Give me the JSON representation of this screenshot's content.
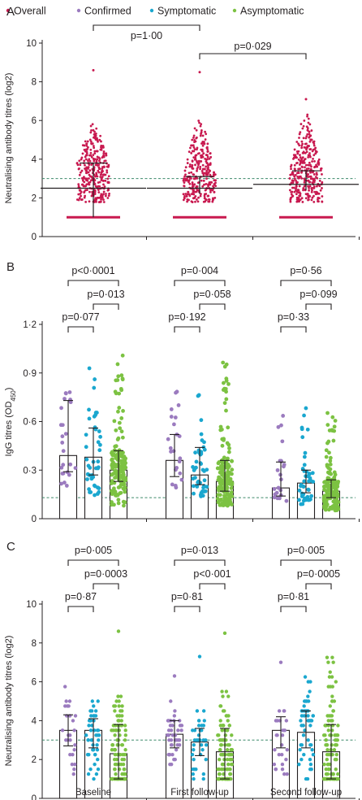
{
  "legend": {
    "items": [
      {
        "label": "Overall",
        "color": "#c8194f"
      },
      {
        "label": "Confirmed",
        "color": "#9b7bbf"
      },
      {
        "label": "Symptomatic",
        "color": "#1aa7cf"
      },
      {
        "label": "Asymptomatic",
        "color": "#7cc242"
      }
    ]
  },
  "x_categories": [
    "Baseline",
    "First follow-up",
    "Second follow-up"
  ],
  "chart_data": [
    {
      "panel": "A",
      "type": "scatter",
      "ylabel": "Neutralising antibody titres (log2)",
      "ylim": [
        0,
        10
      ],
      "yticks": [
        0,
        2,
        4,
        6,
        8,
        10
      ],
      "ytick_labels": [
        "0",
        "2",
        "4",
        "6",
        "8",
        "10"
      ],
      "threshold": 3,
      "groups": [
        {
          "x": 0,
          "series": "Overall",
          "median": 2.5,
          "iqr": [
            1,
            3.8
          ],
          "range": [
            1.8,
            5.8
          ],
          "max": 8.6
        },
        {
          "x": 1,
          "series": "Overall",
          "median": 2.5,
          "iqr": [
            2.2,
            3.1
          ],
          "range": [
            1.8,
            6.0
          ],
          "max": 8.5
        },
        {
          "x": 2,
          "series": "Overall",
          "median": 2.7,
          "iqr": [
            2.4,
            3.4
          ],
          "range": [
            1.8,
            6.3
          ],
          "max": 7.1
        }
      ],
      "comparisons": [
        {
          "label": "p=1·00",
          "from": 0,
          "to": 1
        },
        {
          "label": "p=0·029",
          "from": 1,
          "to": 2
        }
      ]
    },
    {
      "panel": "B",
      "type": "bar",
      "ylabel": "IgG titres (OD",
      "ylabel_sub": "450",
      "ylabel_end": ")",
      "ylim": [
        0,
        1.2
      ],
      "yticks": [
        0,
        0.3,
        0.6,
        0.9,
        1.2
      ],
      "ytick_labels": [
        "0",
        "0·3",
        "0·6",
        "0·9",
        "1·2"
      ],
      "threshold": 0.13,
      "groups": [
        {
          "x": 0,
          "bars": [
            {
              "series": "Confirmed",
              "value": 0.39,
              "err": [
                0.29,
                0.73
              ],
              "range": [
                0.2,
                0.94
              ],
              "n": 25
            },
            {
              "series": "Symptomatic",
              "value": 0.38,
              "err": [
                0.27,
                0.56
              ],
              "range": [
                0.14,
                0.99
              ],
              "n": 45
            },
            {
              "series": "Asymptomatic",
              "value": 0.3,
              "err": [
                0.23,
                0.42
              ],
              "range": [
                0.08,
                1.04
              ],
              "n": 160
            }
          ]
        },
        {
          "x": 1,
          "bars": [
            {
              "series": "Confirmed",
              "value": 0.36,
              "err": [
                0.26,
                0.52
              ],
              "range": [
                0.18,
                0.79
              ],
              "n": 22
            },
            {
              "series": "Symptomatic",
              "value": 0.27,
              "err": [
                0.21,
                0.44
              ],
              "range": [
                0.13,
                0.87
              ],
              "n": 45
            },
            {
              "series": "Asymptomatic",
              "value": 0.23,
              "err": [
                0.17,
                0.36
              ],
              "range": [
                0.08,
                1.0
              ],
              "n": 160
            }
          ]
        },
        {
          "x": 2,
          "bars": [
            {
              "series": "Confirmed",
              "value": 0.19,
              "err": [
                0.14,
                0.35
              ],
              "range": [
                0.09,
                0.65
              ],
              "n": 22
            },
            {
              "series": "Symptomatic",
              "value": 0.22,
              "err": [
                0.16,
                0.3
              ],
              "range": [
                0.08,
                0.72
              ],
              "n": 45
            },
            {
              "series": "Asymptomatic",
              "value": 0.17,
              "err": [
                0.13,
                0.24
              ],
              "range": [
                0.05,
                0.66
              ],
              "n": 160
            }
          ]
        }
      ],
      "comparisons": [
        {
          "group": 0,
          "label": "p<0·0001",
          "from": 0,
          "to": 2,
          "level": 3
        },
        {
          "group": 0,
          "label": "p=0·013",
          "from": 1,
          "to": 2,
          "level": 2
        },
        {
          "group": 0,
          "label": "p=0·077",
          "from": 0,
          "to": 1,
          "level": 1
        },
        {
          "group": 1,
          "label": "p=0·004",
          "from": 0,
          "to": 2,
          "level": 3
        },
        {
          "group": 1,
          "label": "p=0·058",
          "from": 1,
          "to": 2,
          "level": 2
        },
        {
          "group": 1,
          "label": "p=0·192",
          "from": 0,
          "to": 1,
          "level": 1
        },
        {
          "group": 2,
          "label": "p=0·56",
          "from": 0,
          "to": 2,
          "level": 3
        },
        {
          "group": 2,
          "label": "p=0·099",
          "from": 1,
          "to": 2,
          "level": 2
        },
        {
          "group": 2,
          "label": "p=0·33",
          "from": 0,
          "to": 1,
          "level": 1
        }
      ]
    },
    {
      "panel": "C",
      "type": "bar",
      "ylabel": "Neutralising antibody titres (log2)",
      "ylim": [
        0,
        10
      ],
      "yticks": [
        0,
        2,
        4,
        6,
        8,
        10
      ],
      "ytick_labels": [
        "0",
        "2",
        "4",
        "6",
        "8",
        "10"
      ],
      "threshold": 3,
      "groups": [
        {
          "x": 0,
          "bars": [
            {
              "series": "Confirmed",
              "value": 3.5,
              "err": [
                2.7,
                4.3
              ],
              "range": [
                1,
                5.8
              ],
              "n": 25
            },
            {
              "series": "Symptomatic",
              "value": 3.5,
              "err": [
                2.6,
                4.1
              ],
              "range": [
                1,
                5.5
              ],
              "n": 45
            },
            {
              "series": "Asymptomatic",
              "value": 2.3,
              "err": [
                1,
                3.8
              ],
              "range": [
                1,
                5.3
              ],
              "max": 8.6,
              "n": 100
            }
          ]
        },
        {
          "x": 1,
          "bars": [
            {
              "series": "Confirmed",
              "value": 3.3,
              "err": [
                2.6,
                4.0
              ],
              "range": [
                1,
                5.2
              ],
              "max": 6.3,
              "n": 40
            },
            {
              "series": "Symptomatic",
              "value": 2.9,
              "err": [
                2.2,
                3.6
              ],
              "range": [
                1,
                4.6
              ],
              "max": 7.3,
              "n": 35
            },
            {
              "series": "Asymptomatic",
              "value": 2.4,
              "err": [
                1,
                3.6
              ],
              "range": [
                1,
                5.8
              ],
              "max": 8.5,
              "n": 110
            }
          ]
        },
        {
          "x": 2,
          "bars": [
            {
              "series": "Confirmed",
              "value": 3.5,
              "err": [
                2.6,
                4.2
              ],
              "range": [
                1,
                5.0
              ],
              "max": 7.0,
              "n": 25
            },
            {
              "series": "Symptomatic",
              "value": 3.4,
              "err": [
                2.6,
                4.5
              ],
              "range": [
                1,
                6.5
              ],
              "n": 50
            },
            {
              "series": "Asymptomatic",
              "value": 2.4,
              "err": [
                1,
                3.8
              ],
              "range": [
                1,
                7.2
              ],
              "n": 110
            }
          ]
        }
      ],
      "comparisons": [
        {
          "group": 0,
          "label": "p=0·005",
          "from": 0,
          "to": 2,
          "level": 3
        },
        {
          "group": 0,
          "label": "p=0·0003",
          "from": 1,
          "to": 2,
          "level": 2
        },
        {
          "group": 0,
          "label": "p=0·87",
          "from": 0,
          "to": 1,
          "level": 1
        },
        {
          "group": 1,
          "label": "p=0·013",
          "from": 0,
          "to": 2,
          "level": 3
        },
        {
          "group": 1,
          "label": "p<0·001",
          "from": 1,
          "to": 2,
          "level": 2
        },
        {
          "group": 1,
          "label": "p=0·81",
          "from": 0,
          "to": 1,
          "level": 1
        },
        {
          "group": 2,
          "label": "p=0·005",
          "from": 0,
          "to": 2,
          "level": 3
        },
        {
          "group": 2,
          "label": "p=0·0005",
          "from": 1,
          "to": 2,
          "level": 2
        },
        {
          "group": 2,
          "label": "p=0·81",
          "from": 0,
          "to": 1,
          "level": 1
        }
      ]
    }
  ]
}
